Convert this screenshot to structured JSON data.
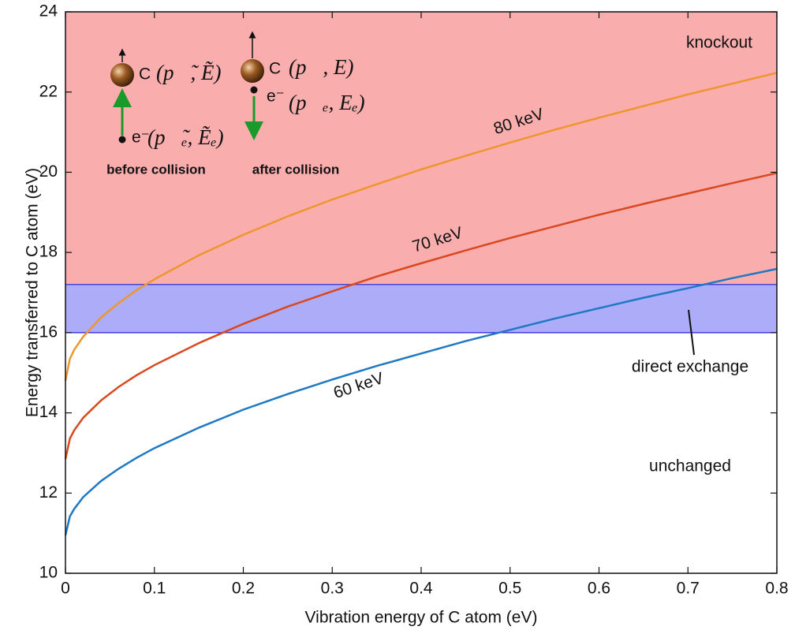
{
  "chart_data": {
    "type": "line",
    "xlabel": "Vibration energy of C atom (eV)",
    "ylabel": "Energy transferred to C atom (eV)",
    "x": [
      0,
      0.005,
      0.01,
      0.02,
      0.04,
      0.06,
      0.08,
      0.1,
      0.15,
      0.2,
      0.25,
      0.3,
      0.35,
      0.4,
      0.45,
      0.5,
      0.55,
      0.6,
      0.65,
      0.7,
      0.75,
      0.8
    ],
    "series": [
      {
        "name": "60 keV",
        "color": "#1f78c4",
        "values": [
          10.95,
          11.42,
          11.61,
          11.9,
          12.3,
          12.61,
          12.88,
          13.12,
          13.63,
          14.08,
          14.47,
          14.83,
          15.17,
          15.48,
          15.79,
          16.07,
          16.35,
          16.61,
          16.87,
          17.11,
          17.36,
          17.59
        ]
      },
      {
        "name": "70 keV",
        "color": "#d9481f",
        "values": [
          12.85,
          13.36,
          13.57,
          13.88,
          14.31,
          14.65,
          14.94,
          15.19,
          15.74,
          16.22,
          16.65,
          17.03,
          17.4,
          17.73,
          18.05,
          18.36,
          18.65,
          18.94,
          19.21,
          19.47,
          19.73,
          19.98
        ]
      },
      {
        "name": "80 keV",
        "color": "#ee962e",
        "values": [
          14.8,
          15.35,
          15.58,
          15.9,
          16.38,
          16.74,
          17.06,
          17.33,
          17.93,
          18.44,
          18.9,
          19.32,
          19.7,
          20.07,
          20.41,
          20.74,
          21.06,
          21.36,
          21.65,
          21.94,
          22.21,
          22.48
        ]
      }
    ],
    "regions": [
      {
        "label": "knockout",
        "from": 17.2,
        "color": "#f9adad"
      },
      {
        "label": "direct exchange",
        "from": 16,
        "to": 17.2,
        "color": "#acacf8"
      },
      {
        "label": "unchanged"
      }
    ],
    "xlim": [
      0,
      0.8
    ],
    "ylim": [
      10,
      24
    ],
    "xticks": [
      0,
      0.1,
      0.2,
      0.3,
      0.4,
      0.5,
      0.6,
      0.7,
      0.8
    ],
    "yticks": [
      10,
      12,
      14,
      16,
      18,
      20,
      22,
      24
    ],
    "inset": {
      "before": {
        "atom": "C",
        "atom_state": "(p⃗̃, Ẽ)",
        "electron": "e⁻",
        "electron_state": "(p⃗̃ₑ, Ẽₑ)",
        "caption": "before collision"
      },
      "after": {
        "atom": "C",
        "atom_state": "(p⃗, E)",
        "electron": "e⁻",
        "electron_state": "(p⃗ₑ, Eₑ)",
        "caption": "after collision"
      }
    }
  }
}
